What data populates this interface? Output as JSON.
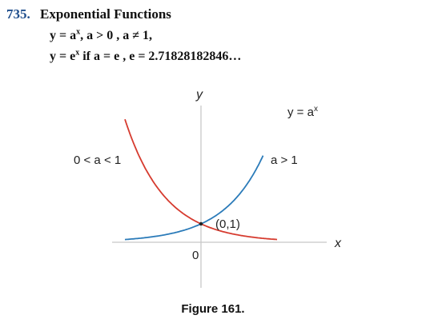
{
  "problem": {
    "number": "735.",
    "title": "Exponential Functions",
    "line1": {
      "base": "y = a",
      "sup": "x",
      "rest": ",  a > 0 ,  a ≠ 1,"
    },
    "line2": {
      "base": "y = e",
      "sup": "x",
      "rest": " if  a = e ,  e = 2.71828182846…"
    }
  },
  "figure": {
    "y_axis_label": "y",
    "x_axis_label": "x",
    "origin_label": "0",
    "point_label": "(0,1)",
    "curve_increasing_label": "y = a",
    "curve_increasing_label_sup": "x",
    "increasing_condition": "a > 1",
    "decreasing_condition": "0 < a < 1",
    "colors": {
      "increasing": "#2b7bb9",
      "decreasing": "#d63b2f",
      "axis": "#c8c8c8"
    }
  },
  "caption": "Figure 161."
}
